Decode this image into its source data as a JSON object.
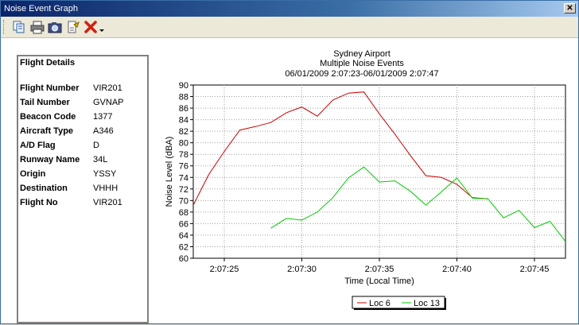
{
  "window": {
    "title": "Noise Event Graph",
    "close_glyph": "✕"
  },
  "toolbar": {
    "icons": [
      "copy-icon",
      "print-icon",
      "camera-icon",
      "flight-info-icon",
      "delete-icon",
      "dropdown-arrow-icon"
    ]
  },
  "flight_details": {
    "heading": "Flight Details",
    "rows": [
      {
        "label": "Flight Number",
        "value": "VIR201"
      },
      {
        "label": "Tail Number",
        "value": "GVNAP"
      },
      {
        "label": "Beacon Code",
        "value": "1377"
      },
      {
        "label": "Aircraft Type",
        "value": "A346"
      },
      {
        "label": "A/D Flag",
        "value": "D"
      },
      {
        "label": "Runway Name",
        "value": "34L"
      },
      {
        "label": "Origin",
        "value": "YSSY"
      },
      {
        "label": "Destination",
        "value": "VHHH"
      },
      {
        "label": "Flight No",
        "value": "VIR201"
      }
    ]
  },
  "chart_data": {
    "type": "line",
    "title": "Sydney Airport",
    "subtitle": "Multiple Noise Events",
    "range_label": "06/01/2009 2:07:23-06/01/2009 2:07:47",
    "xlabel": "Time (Local Time)",
    "ylabel": "Noise Level (dBA)",
    "xlim": [
      23,
      47
    ],
    "ylim": [
      60,
      90
    ],
    "x_ticks": [
      25,
      30,
      35,
      40,
      45
    ],
    "x_tick_labels": [
      "2:07:25",
      "2:07:30",
      "2:07:35",
      "2:07:40",
      "2:07:45"
    ],
    "y_ticks": [
      60,
      62,
      64,
      66,
      68,
      70,
      72,
      74,
      76,
      78,
      80,
      82,
      84,
      86,
      88,
      90
    ],
    "grid": true,
    "legend_position": "bottom-center",
    "series": [
      {
        "name": "Loc 6",
        "color": "#cc0000",
        "x": [
          23,
          24,
          25,
          26,
          27,
          28,
          29,
          30,
          31,
          32,
          33,
          34,
          35,
          36,
          37,
          38,
          39,
          40,
          41,
          42
        ],
        "y": [
          69.2,
          74.5,
          78.5,
          82.2,
          82.8,
          83.5,
          85.2,
          86.2,
          84.6,
          87.4,
          88.6,
          88.8,
          85.0,
          81.5,
          77.8,
          74.3,
          74.0,
          72.8,
          70.5,
          70.3
        ]
      },
      {
        "name": "Loc 13",
        "color": "#00cc00",
        "x": [
          28,
          29,
          30,
          31,
          32,
          33,
          34,
          35,
          36,
          37,
          38,
          39,
          40,
          41,
          42,
          43,
          44,
          45,
          46,
          47
        ],
        "y": [
          65.2,
          66.9,
          66.6,
          68.0,
          70.5,
          73.9,
          75.8,
          73.2,
          73.4,
          71.6,
          69.2,
          71.5,
          73.9,
          70.4,
          70.3,
          67.0,
          68.3,
          65.3,
          66.4,
          62.9
        ]
      }
    ]
  }
}
